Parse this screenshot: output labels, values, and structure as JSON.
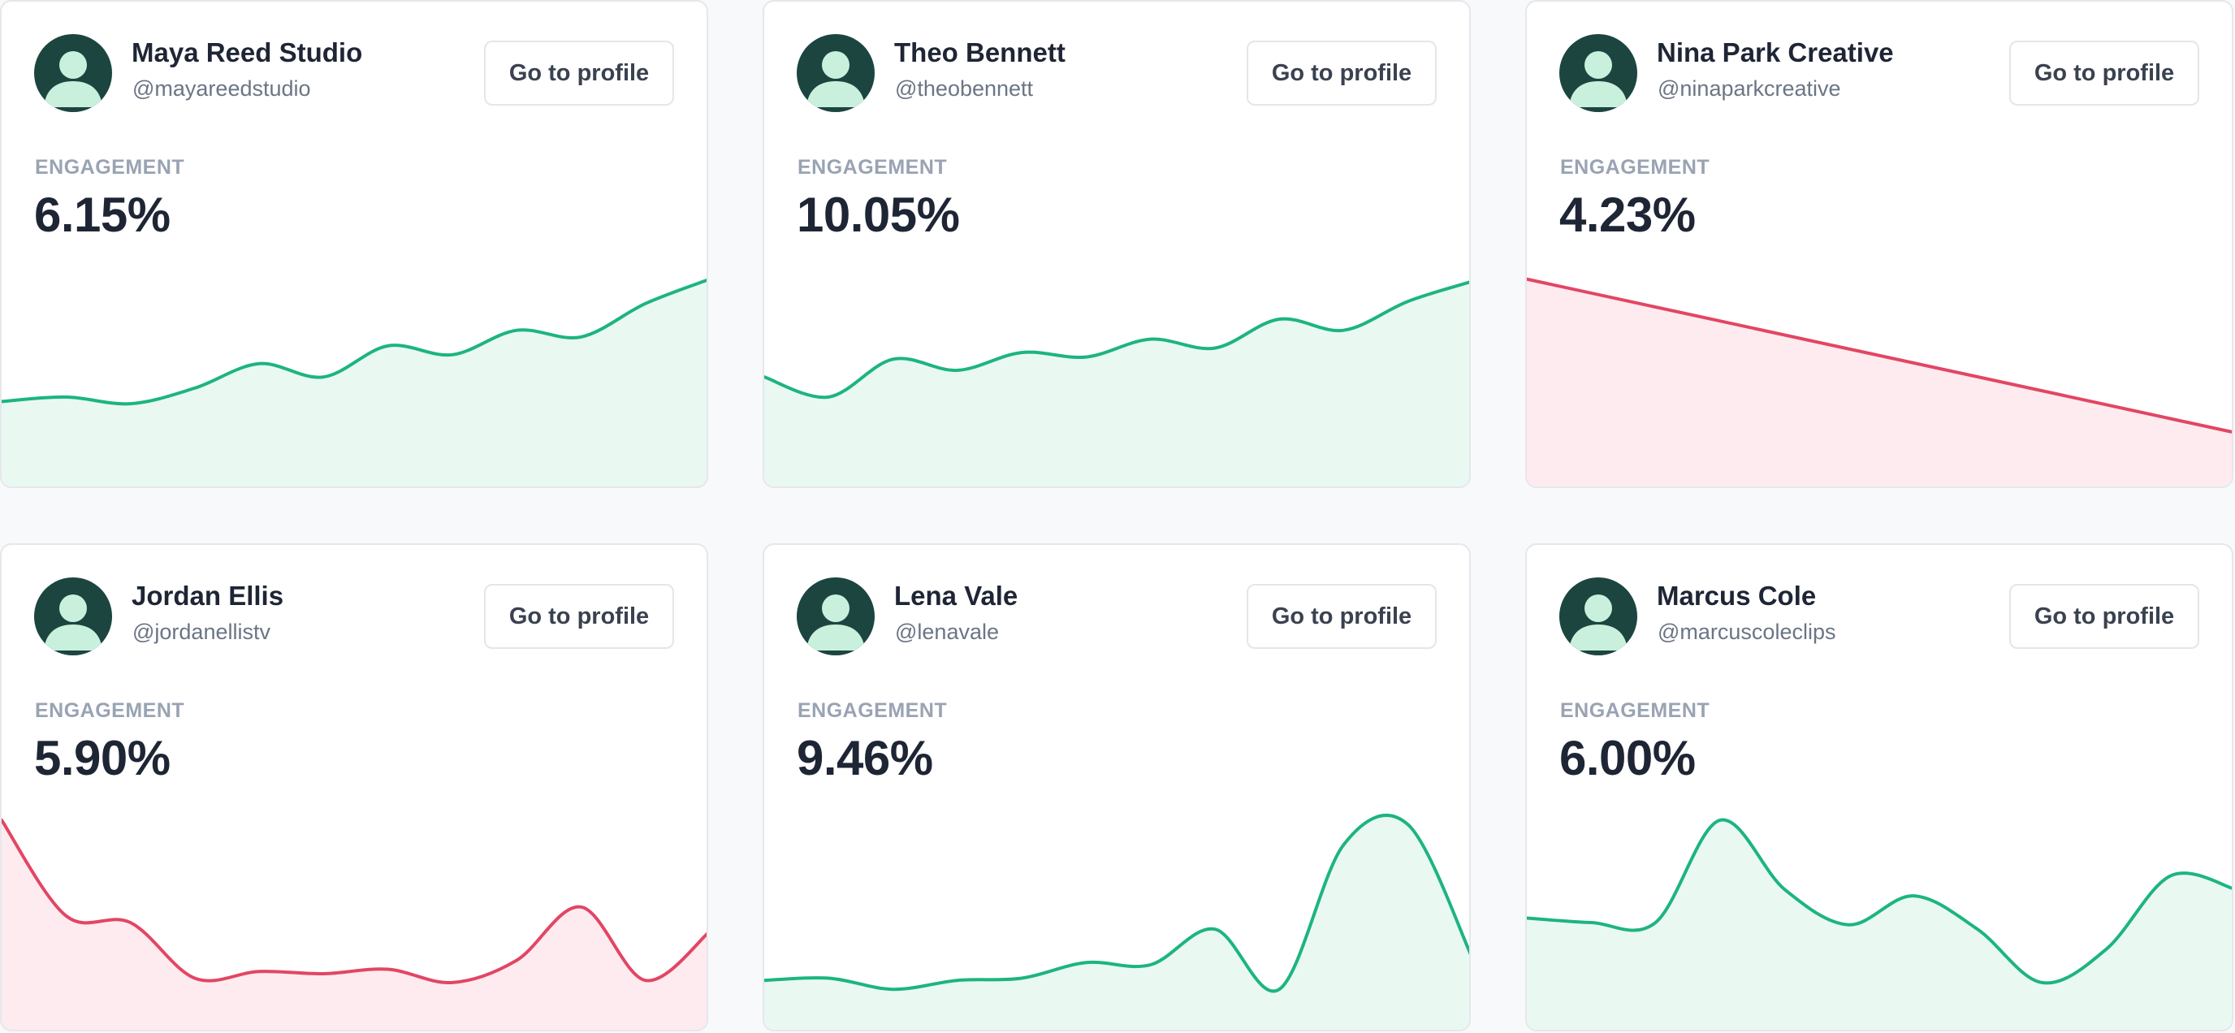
{
  "profile_button_label": "Go to profile",
  "engagement_label": "ENGAGEMENT",
  "colors": {
    "up_line": "#1db482",
    "up_fill": "#e9f9f2",
    "down_line": "#e24663",
    "down_fill": "#fdebef",
    "avatar_bg": "#1c4540",
    "avatar_fg": "#c8f0dc"
  },
  "cards": [
    {
      "name": "Maya Reed Studio",
      "handle": "@mayareedstudio",
      "engagement": "6.15%",
      "trend": "up",
      "sparkline": [
        36,
        38,
        35,
        42,
        53,
        47,
        61,
        57,
        68,
        65,
        80,
        91
      ]
    },
    {
      "name": "Theo Bennett",
      "handle": "@theobennett",
      "engagement": "10.05%",
      "trend": "up",
      "sparkline": [
        47,
        38,
        55,
        50,
        58,
        56,
        64,
        60,
        73,
        68,
        81,
        90
      ]
    },
    {
      "name": "Nina Park Creative",
      "handle": "@ninaparkcreative",
      "engagement": "4.23%",
      "trend": "down",
      "sparkline": [
        91,
        22
      ]
    },
    {
      "name": "Jordan Ellis",
      "handle": "@jordanellistv",
      "engagement": "5.90%",
      "trend": "down",
      "sparkline": [
        92,
        49,
        46,
        21,
        24,
        23,
        25,
        19,
        29,
        53,
        20,
        42
      ]
    },
    {
      "name": "Lena Vale",
      "handle": "@lenavale",
      "engagement": "9.46%",
      "trend": "up",
      "sparkline": [
        20,
        21,
        16,
        20,
        21,
        28,
        27,
        43,
        16,
        81,
        90,
        30
      ]
    },
    {
      "name": "Marcus Cole",
      "handle": "@marcuscoleclips",
      "engagement": "6.00%",
      "trend": "up",
      "sparkline": [
        48,
        46,
        46,
        92,
        61,
        45,
        58,
        43,
        19,
        34,
        67,
        61
      ]
    }
  ]
}
